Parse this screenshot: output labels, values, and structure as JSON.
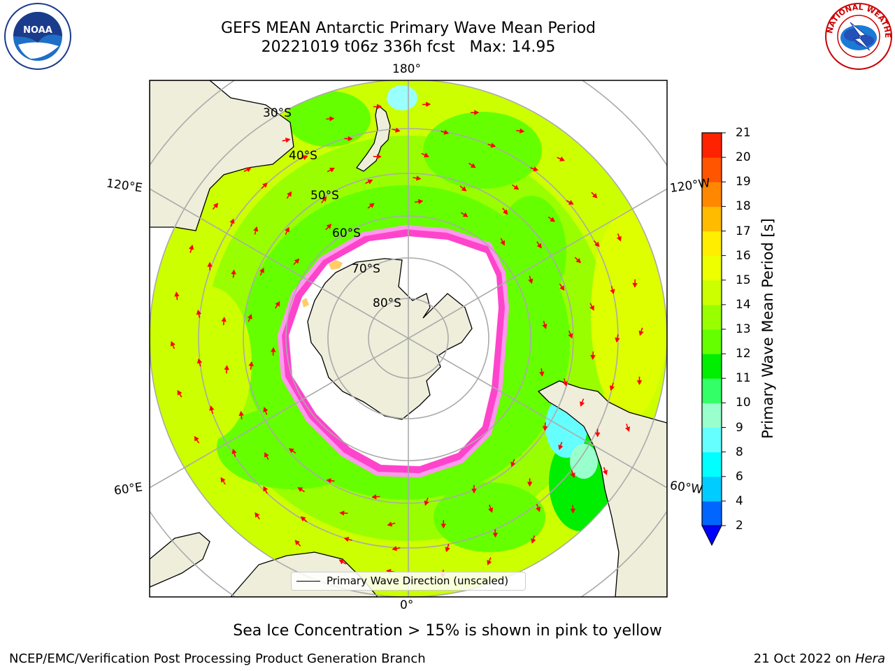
{
  "header": {
    "title_line1": "GEFS MEAN Antarctic Primary Wave Mean Period",
    "title_line2": "20221019 t06z 336h fcst   Max: 14.95"
  },
  "logos": {
    "left": "NOAA",
    "right_ring_text": "NATIONAL WEATHER SERVICE"
  },
  "map": {
    "projection": "South Polar Stereographic",
    "longitude_labels": {
      "top": "180°",
      "bottom": "0°",
      "upper_left": "120°E",
      "lower_left": "60°E",
      "upper_right": "120°W",
      "lower_right": "60°W"
    },
    "latitude_labels": [
      "30°S",
      "40°S",
      "50°S",
      "60°S",
      "70°S",
      "80°S"
    ],
    "colors": {
      "land": "#efeedb",
      "ice_free_ocean_far": "#ccff00",
      "ocean_mid": "#66ff00",
      "sea_ice_edge": "#ff33cc",
      "arrow": "#ff0000"
    }
  },
  "colorbar": {
    "label": "Primary Wave Mean Period [s]",
    "ticks": [
      "2",
      "4",
      "6",
      "8",
      "9",
      "10",
      "11",
      "12",
      "13",
      "14",
      "15",
      "16",
      "17",
      "18",
      "19",
      "20",
      "21"
    ],
    "colors": [
      "#0066ff",
      "#00ccff",
      "#00ffff",
      "#66ffff",
      "#99ffcc",
      "#33ff66",
      "#00ee00",
      "#66ff00",
      "#99ff00",
      "#ccff00",
      "#eeff00",
      "#ffee00",
      "#ffbb00",
      "#ff8800",
      "#ff5500",
      "#ff2200"
    ],
    "under_color": "#0000ff"
  },
  "legend": {
    "label": "Primary Wave Direction (unscaled)"
  },
  "caption": "Sea Ice Concentration > 15% is shown in pink to yellow",
  "footer": {
    "left": "NCEP/EMC/Verification Post Processing Product Generation Branch",
    "right_date": "21 Oct 2022 on",
    "right_machine": "Hera"
  }
}
